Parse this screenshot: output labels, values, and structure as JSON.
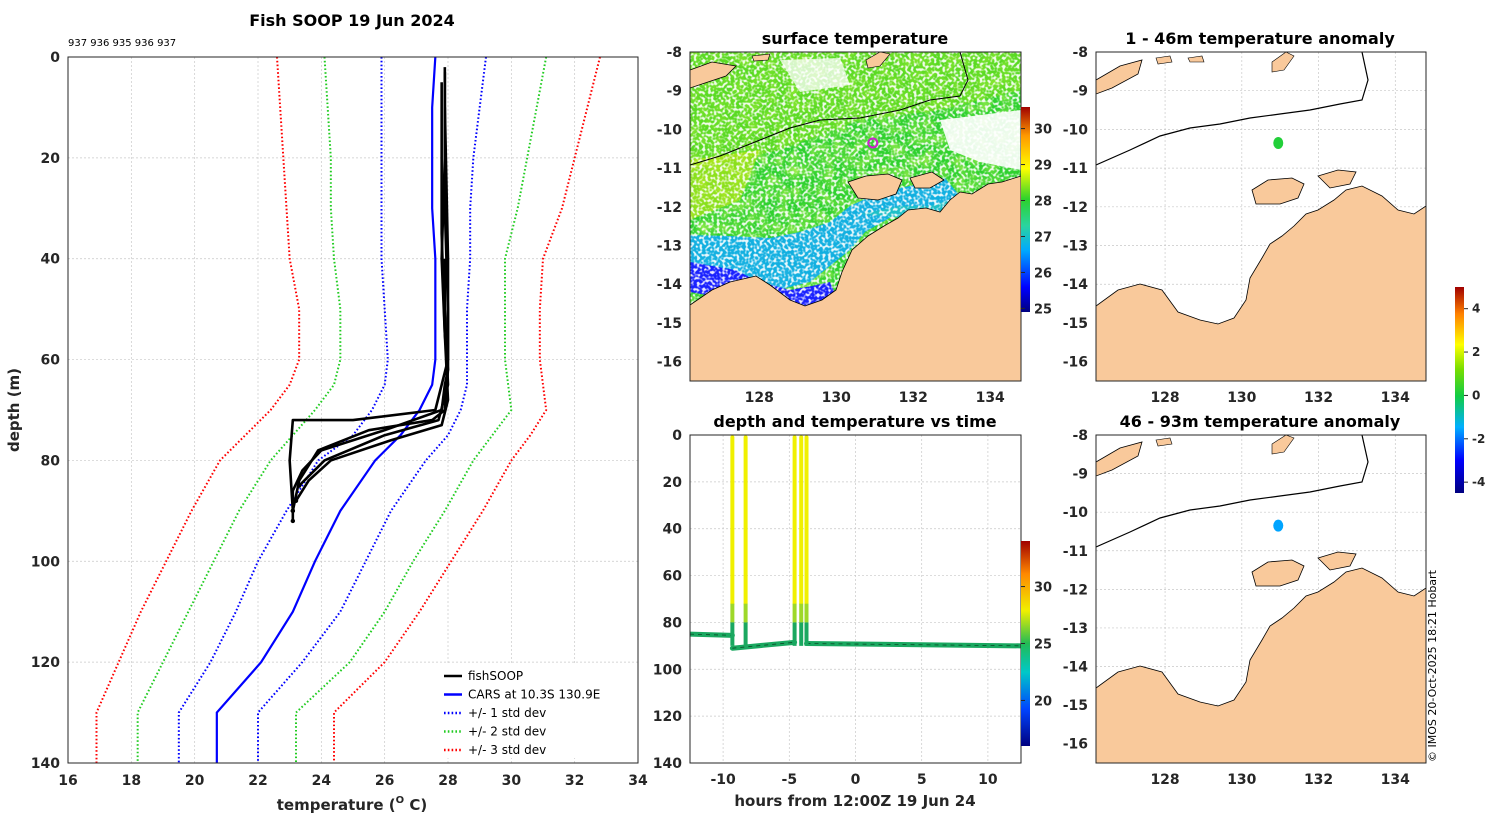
{
  "colors": {
    "land": "#f9c99b",
    "ocean_bg": "#ffffff",
    "cars": "#0000ff",
    "std1": "#0000ff",
    "std2": "#22cc22",
    "std3": "#ff0000",
    "fish": "#000000"
  },
  "footer": {
    "credit": "© IMOS 20-Oct-2025 18:21 Hobart"
  },
  "chart_data": [
    {
      "id": "profile",
      "type": "line",
      "title": "Fish SOOP 19 Jun 2024",
      "subtitle": "937 936 935 936 937",
      "xlabel": "temperature (ᴼ C)",
      "xlabel_prefix": "temperature (",
      "xlabel_sup": "O",
      "xlabel_suffix": " C)",
      "ylabel": "depth (m)",
      "xlim": [
        16,
        34
      ],
      "ylim": [
        0,
        140
      ],
      "y_reversed": true,
      "xticks": [
        16,
        18,
        20,
        22,
        24,
        26,
        28,
        30,
        32,
        34
      ],
      "yticks": [
        0,
        20,
        40,
        60,
        80,
        100,
        120,
        140
      ],
      "grid": true,
      "legend_position": "bottom-right",
      "legend": [
        "fishSOOP",
        "CARS at 10.3S 130.9E",
        "+/- 1 std dev",
        "+/- 2 std dev",
        "+/- 3 std dev"
      ],
      "depths": [
        0,
        10,
        20,
        30,
        40,
        50,
        60,
        65,
        70,
        75,
        80,
        90,
        100,
        110,
        120,
        130,
        140
      ],
      "series": [
        {
          "name": "CARS at 10.3S 130.9E",
          "style": "solid",
          "color": "#0000ff",
          "values": [
            27.6,
            27.5,
            27.5,
            27.5,
            27.6,
            27.6,
            27.6,
            27.5,
            27.1,
            26.5,
            25.7,
            24.6,
            23.8,
            23.1,
            22.1,
            20.7,
            20.7
          ]
        },
        {
          "name": "+1 std",
          "style": "dotted",
          "color": "#0000ff",
          "values": [
            29.2,
            29.0,
            28.8,
            28.7,
            28.7,
            28.6,
            28.6,
            28.6,
            28.4,
            28.0,
            27.3,
            26.2,
            25.4,
            24.6,
            23.4,
            22.0,
            22.0
          ]
        },
        {
          "name": "-1 std",
          "style": "dotted",
          "color": "#0000ff",
          "values": [
            25.9,
            25.9,
            25.9,
            25.9,
            25.9,
            26.0,
            26.1,
            26.0,
            25.6,
            25.0,
            23.9,
            22.9,
            22.0,
            21.3,
            20.5,
            19.5,
            19.5
          ]
        },
        {
          "name": "+2 std",
          "style": "dotted",
          "color": "#22cc22",
          "values": [
            31.1,
            30.8,
            30.5,
            30.2,
            29.8,
            29.8,
            29.8,
            29.9,
            30.0,
            29.4,
            28.8,
            27.9,
            26.9,
            26.0,
            24.9,
            23.2,
            23.2
          ]
        },
        {
          "name": "-2 std",
          "style": "dotted",
          "color": "#22cc22",
          "values": [
            24.1,
            24.2,
            24.3,
            24.3,
            24.4,
            24.6,
            24.6,
            24.4,
            23.8,
            23.1,
            22.4,
            21.4,
            20.6,
            19.8,
            19.0,
            18.2,
            18.2
          ]
        },
        {
          "name": "+3 std",
          "style": "dotted",
          "color": "#ff0000",
          "values": [
            32.8,
            32.4,
            32.0,
            31.6,
            31.0,
            30.9,
            30.9,
            31.0,
            31.1,
            30.6,
            30.0,
            29.1,
            28.1,
            27.1,
            26.0,
            24.4,
            24.4
          ]
        },
        {
          "name": "-3 std",
          "style": "dotted",
          "color": "#ff0000",
          "values": [
            22.6,
            22.7,
            22.8,
            22.9,
            23.0,
            23.3,
            23.3,
            23.0,
            22.4,
            21.6,
            20.8,
            19.9,
            19.1,
            18.3,
            17.6,
            16.9,
            16.9
          ]
        }
      ],
      "fish_profiles": [
        {
          "t": [
            27.9,
            27.9,
            27.8,
            27.9,
            28.0,
            27.9,
            27.8,
            26.0,
            24.0,
            23.4,
            23.1,
            23.1
          ],
          "d": [
            2,
            20,
            40,
            55,
            62,
            65,
            70,
            74,
            78,
            82,
            86,
            92
          ]
        },
        {
          "t": [
            27.9,
            27.9,
            28.0,
            28.0,
            27.9,
            27.5,
            25.5,
            23.9,
            23.3,
            23.1
          ],
          "d": [
            3,
            30,
            50,
            62,
            70,
            72,
            74,
            78,
            84,
            90
          ]
        },
        {
          "t": [
            27.8,
            27.8,
            27.9,
            28.0,
            27.8,
            26.2,
            24.3,
            23.6,
            23.2
          ],
          "d": [
            5,
            35,
            55,
            68,
            73,
            76,
            80,
            84,
            88
          ]
        },
        {
          "t": [
            27.9,
            28.0,
            28.0,
            27.6,
            25.0,
            23.1,
            23.0,
            23.1
          ],
          "d": [
            10,
            40,
            60,
            70,
            72,
            72,
            80,
            90
          ]
        },
        {
          "t": [
            27.9,
            27.9,
            28.0,
            27.7,
            26.0,
            24.1,
            23.3
          ],
          "d": [
            40,
            50,
            65,
            72,
            75,
            80,
            85
          ]
        }
      ]
    },
    {
      "id": "sst_map",
      "type": "heatmap",
      "title": "surface temperature",
      "xticks": [
        128,
        130,
        132,
        134
      ],
      "yticks": [
        -8,
        -9,
        -10,
        -11,
        -12,
        -13,
        -14,
        -15,
        -16
      ],
      "xlim": [
        126.2,
        134.8
      ],
      "ylim": [
        -16.5,
        -8
      ],
      "colorbar_ticks": [
        25,
        26,
        27,
        28,
        29,
        30
      ],
      "colorbar_range": [
        24.9,
        30.6
      ],
      "marker": {
        "lon": 130.95,
        "lat": -10.35
      }
    },
    {
      "id": "anom_shallow",
      "type": "heatmap",
      "title": "1 - 46m temperature anomaly",
      "xticks": [
        128,
        130,
        132,
        134
      ],
      "yticks": [
        -8,
        -9,
        -10,
        -11,
        -12,
        -13,
        -14,
        -15,
        -16
      ],
      "xlim": [
        126.2,
        134.8
      ],
      "ylim": [
        -16.5,
        -8
      ],
      "point": {
        "lon": 130.95,
        "lat": -10.35,
        "anomaly": 0.2
      }
    },
    {
      "id": "anom_deep",
      "type": "heatmap",
      "title": "46 - 93m temperature anomaly",
      "xticks": [
        128,
        130,
        132,
        134
      ],
      "yticks": [
        -8,
        -9,
        -10,
        -11,
        -12,
        -13,
        -14,
        -15,
        -16
      ],
      "xlim": [
        126.2,
        134.8
      ],
      "ylim": [
        -16.5,
        -8
      ],
      "point": {
        "lon": 130.95,
        "lat": -10.35,
        "anomaly": -1.6
      }
    },
    {
      "id": "anom_colorbar",
      "type": "colorbar",
      "range": [
        -4.5,
        5
      ],
      "ticks": [
        -4,
        -2,
        0,
        2,
        4
      ]
    },
    {
      "id": "depth_time",
      "type": "scatter",
      "title": "depth and temperature vs time",
      "xlabel": "hours from 12:00Z 19 Jun 24",
      "xlim": [
        -12.5,
        12.5
      ],
      "ylim": [
        0,
        140
      ],
      "y_reversed": true,
      "xticks": [
        -10,
        -5,
        0,
        5,
        10
      ],
      "yticks": [
        0,
        20,
        40,
        60,
        80,
        100,
        120,
        140
      ],
      "colorbar_ticks": [
        20,
        25,
        30
      ],
      "colorbar_range": [
        16,
        34
      ],
      "casts": [
        -9.3,
        -8.3,
        -4.6,
        -4.1,
        -3.7
      ],
      "bottom_segments": [
        {
          "x0": -12.5,
          "x1": -9.3,
          "d0": 85,
          "d1": 85.5
        },
        {
          "x0": -9.3,
          "x1": -4.6,
          "d0": 91,
          "d1": 88.5
        },
        {
          "x0": -3.7,
          "x1": 12.5,
          "d0": 89,
          "d1": 90
        }
      ]
    }
  ]
}
